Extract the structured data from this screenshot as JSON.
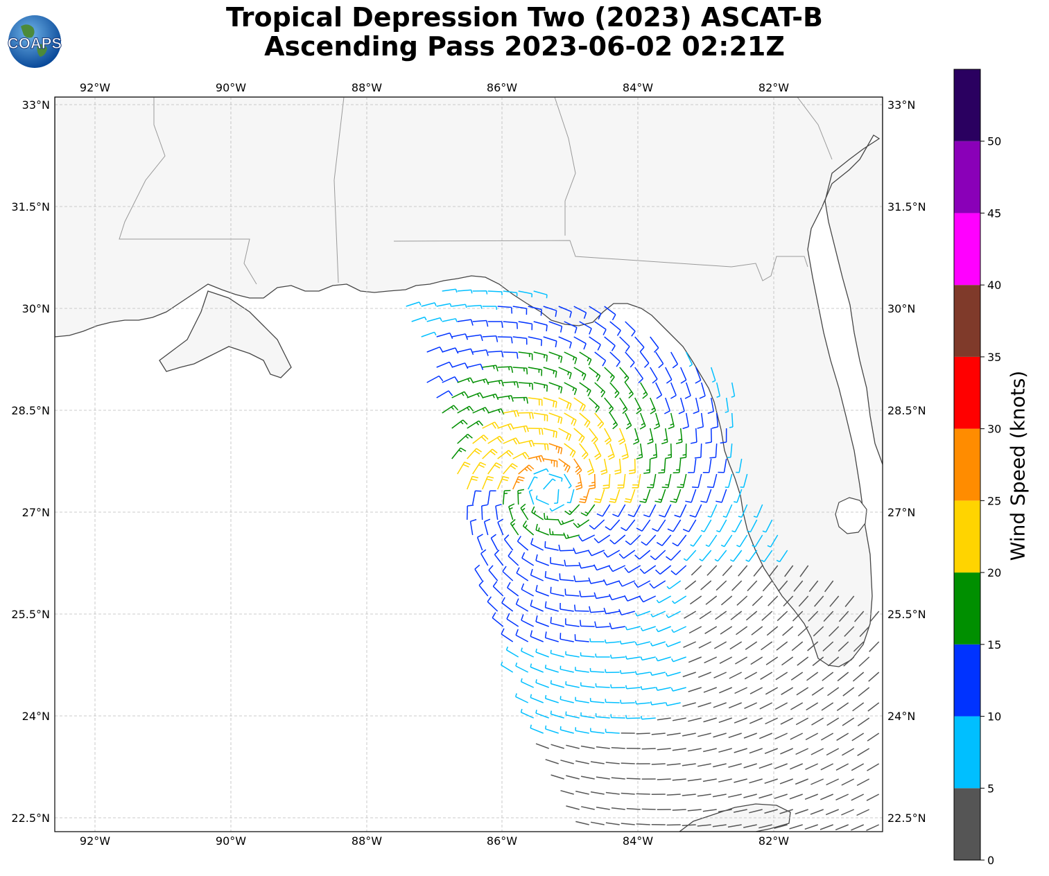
{
  "title": {
    "line1": "Tropical Depression Two (2023) ASCAT-B",
    "line2": "Ascending Pass 2023-06-02 02:21Z"
  },
  "logo": {
    "text": "COAPS",
    "icon": "globe-icon"
  },
  "map": {
    "lon_ticks": [
      "92°W",
      "90°W",
      "88°W",
      "86°W",
      "84°W",
      "82°W"
    ],
    "lat_ticks": [
      "33°N",
      "31.5°N",
      "30°N",
      "28.5°N",
      "27°N",
      "25.5°N",
      "24°N",
      "22.5°N"
    ],
    "extent": {
      "lon": [
        -92.6,
        -80.4
      ],
      "lat": [
        22.3,
        33.1
      ]
    },
    "gridlines": true
  },
  "colorbar": {
    "label": "Wind Speed (knots)",
    "ticks": [
      "0",
      "5",
      "10",
      "15",
      "20",
      "25",
      "30",
      "35",
      "40",
      "45",
      "50"
    ],
    "bins": [
      {
        "min": 0,
        "max": 5,
        "color": "#555555"
      },
      {
        "min": 5,
        "max": 10,
        "color": "#00bfff"
      },
      {
        "min": 10,
        "max": 15,
        "color": "#0033ff"
      },
      {
        "min": 15,
        "max": 20,
        "color": "#008f00"
      },
      {
        "min": 20,
        "max": 25,
        "color": "#ffd400"
      },
      {
        "min": 25,
        "max": 30,
        "color": "#ff8c00"
      },
      {
        "min": 30,
        "max": 35,
        "color": "#ff0000"
      },
      {
        "min": 35,
        "max": 40,
        "color": "#7f3a2a"
      },
      {
        "min": 40,
        "max": 45,
        "color": "#ff00ff"
      },
      {
        "min": 45,
        "max": 50,
        "color": "#8a00b8"
      },
      {
        "min": 50,
        "max": 55,
        "color": "#2a0060"
      }
    ]
  },
  "wind_field": {
    "center": {
      "lon": -85.3,
      "lat": 27.3
    },
    "description_units": "knots"
  }
}
